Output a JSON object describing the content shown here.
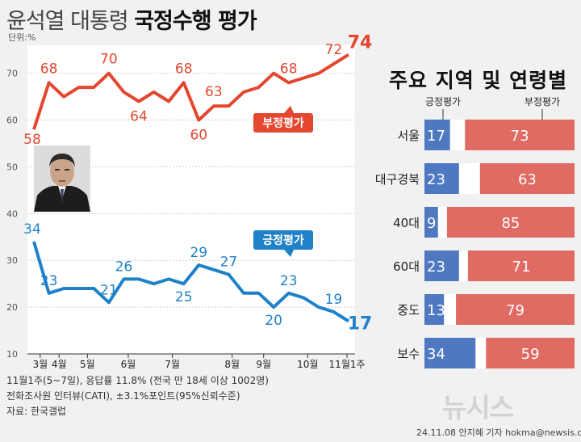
{
  "title_part1": "윤석열 대통령",
  "title_part2": "국정수행 평가",
  "unit": "단위:%",
  "right_title": "주요 지역 및 연령별",
  "notes": [
    "11월1주(5~7일), 응답률 11.8% (전국 만 18세 이상 1002명)",
    "전화조사원 인터뷰(CATI), ±3.1%포인트(95%신뢰수준)",
    "자료: 한국갤럽"
  ],
  "logo": "뉴시스",
  "credit": "24.11.08 안지혜 기자  hokma@newsis.com",
  "colors": {
    "negative": "#e4472f",
    "positive": "#1f82c8",
    "bar_neg": "#e06b63",
    "bar_pos": "#4e78c0",
    "chart_bg": "#ffffff"
  },
  "icons": {
    "photo": "person-portrait-icon"
  },
  "chart_data": [
    {
      "type": "line",
      "title": "",
      "ylim": [
        10,
        76
      ],
      "y_ticks": [
        10,
        20,
        30,
        40,
        50,
        60,
        70
      ],
      "grid": true,
      "x_labels": [
        "3월",
        "4월",
        "5월",
        "6월",
        "7월",
        "8월",
        "9월",
        "10월",
        "11월1주"
      ],
      "series": [
        {
          "name": "부정평가",
          "values": [
            58,
            68,
            65,
            67,
            67,
            70,
            66,
            64,
            66,
            64,
            68,
            60,
            63,
            63,
            66,
            67,
            70,
            68,
            69,
            70,
            72,
            74
          ],
          "labels": {
            "0": "58",
            "1": "68",
            "5": "70",
            "7": "64",
            "10": "68",
            "11": "60",
            "12": "63",
            "17": "68",
            "20": "72",
            "21": "74"
          }
        },
        {
          "name": "긍정평가",
          "values": [
            34,
            23,
            24,
            24,
            24,
            21,
            26,
            26,
            25,
            26,
            25,
            29,
            28,
            27,
            23,
            23,
            20,
            23,
            22,
            20,
            19,
            17
          ],
          "labels": {
            "0": "34",
            "1": "23",
            "5": "21",
            "6": "26",
            "10": "25",
            "11": "29",
            "13": "27",
            "16": "20",
            "17": "23",
            "20": "19",
            "21": "17"
          }
        }
      ]
    },
    {
      "type": "bar",
      "title": "주요 지역 및 연령별",
      "categories": [
        "서울",
        "대구경북",
        "40대",
        "60대",
        "중도",
        "보수"
      ],
      "legend": [
        "긍정평가",
        "부정평가"
      ],
      "series": [
        {
          "name": "긍정평가",
          "values": [
            17,
            23,
            9,
            23,
            13,
            34
          ]
        },
        {
          "name": "부정평가",
          "values": [
            73,
            63,
            85,
            71,
            79,
            59
          ]
        }
      ]
    }
  ]
}
